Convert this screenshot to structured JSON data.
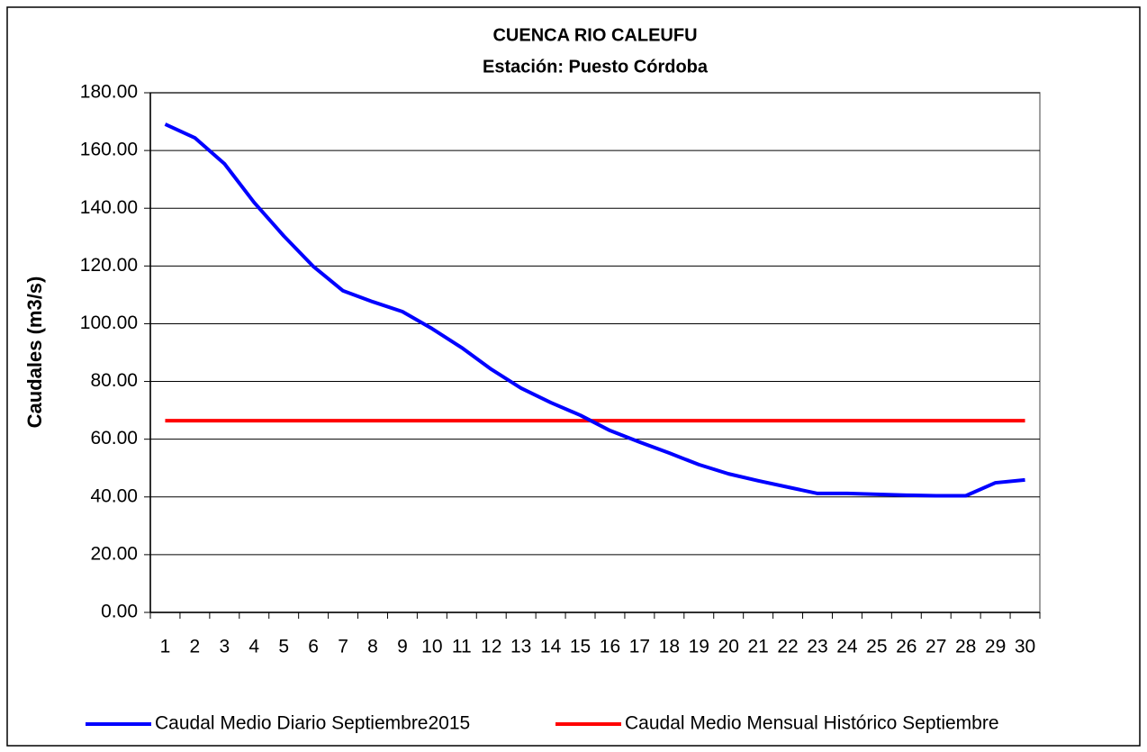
{
  "chart_data": {
    "type": "line",
    "title": "CUENCA RIO CALEUFU",
    "subtitle": "Estación: Puesto Córdoba",
    "y_label": "Caudales (m3/s)",
    "categories": [
      "1",
      "2",
      "3",
      "4",
      "5",
      "6",
      "7",
      "8",
      "9",
      "10",
      "11",
      "12",
      "13",
      "14",
      "15",
      "16",
      "17",
      "18",
      "19",
      "20",
      "21",
      "22",
      "23",
      "24",
      "25",
      "26",
      "27",
      "28",
      "29",
      "30"
    ],
    "series": [
      {
        "name": "Caudal Medio Diario Septiembre2015",
        "color": "#0000ff",
        "values": [
          169.1,
          164.4,
          155.4,
          142,
          130.4,
          119.8,
          111.4,
          107.6,
          104.2,
          98.3,
          91.7,
          84.2,
          77.7,
          72.7,
          68.3,
          63,
          59,
          55.2,
          51.2,
          48,
          45.6,
          43.4,
          41.2,
          41.2,
          40.9,
          40.6,
          40.4,
          40.4,
          44.9,
          45.9
        ]
      },
      {
        "name": "Caudal Medio Mensual Histórico Septiembre",
        "color": "#ff0000",
        "values": [
          66.4,
          66.4,
          66.4,
          66.4,
          66.4,
          66.4,
          66.4,
          66.4,
          66.4,
          66.4,
          66.4,
          66.4,
          66.4,
          66.4,
          66.4,
          66.4,
          66.4,
          66.4,
          66.4,
          66.4,
          66.4,
          66.4,
          66.4,
          66.4,
          66.4,
          66.4,
          66.4,
          66.4,
          66.4,
          66.4
        ]
      }
    ],
    "ylim": [
      0,
      180
    ],
    "yticks": [
      {
        "value": 0,
        "label": "0.00"
      },
      {
        "value": 20,
        "label": "20.00"
      },
      {
        "value": 40,
        "label": "40.00"
      },
      {
        "value": 60,
        "label": "60.00"
      },
      {
        "value": 80,
        "label": "80.00"
      },
      {
        "value": 100,
        "label": "100.00"
      },
      {
        "value": 120,
        "label": "120.00"
      },
      {
        "value": 140,
        "label": "140.00"
      },
      {
        "value": 160,
        "label": "160.00"
      },
      {
        "value": 180,
        "label": "180.00"
      }
    ],
    "grid": true,
    "legend": "bottom"
  }
}
